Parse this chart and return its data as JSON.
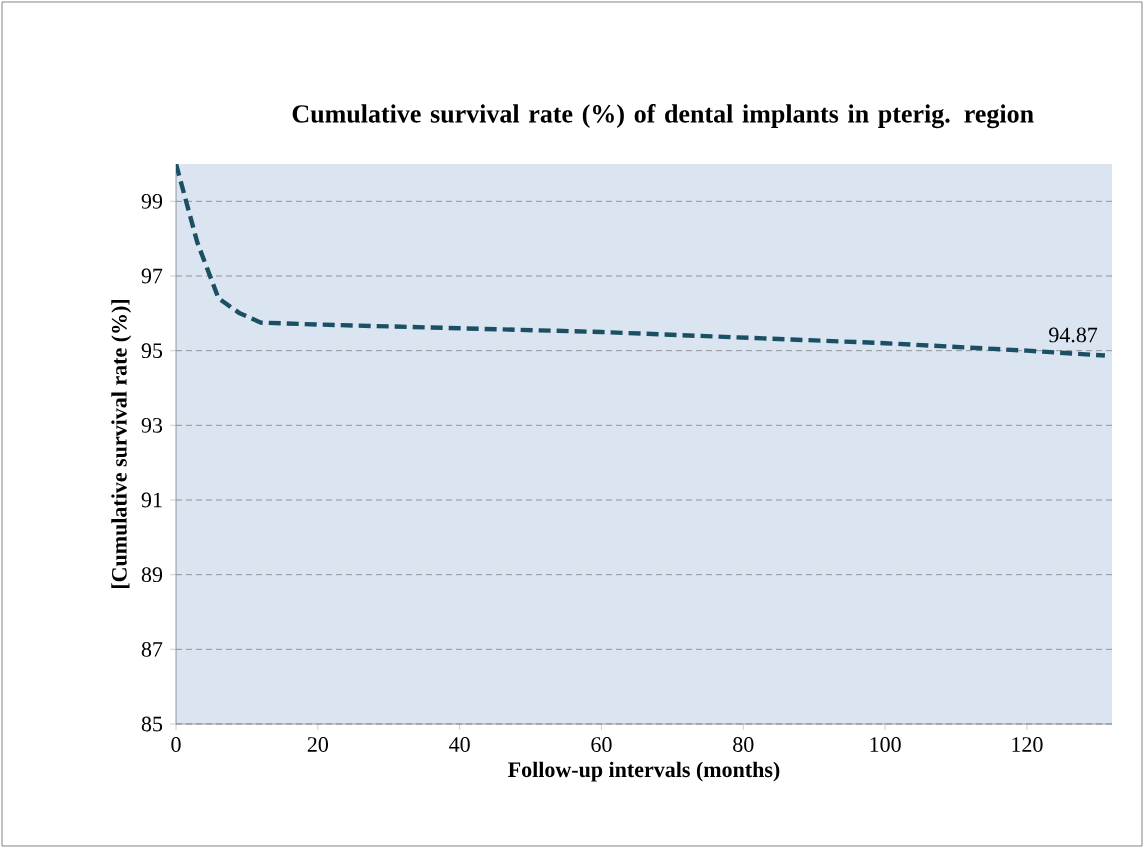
{
  "chart_data": {
    "type": "line",
    "title": "Cumulative survival rate (%) of dental implants in pterig. region",
    "xlabel": "Follow-up intervals (months)",
    "ylabel": "[Cumulative survival rate (%)]",
    "x": [
      0,
      3,
      6,
      9,
      12,
      20,
      40,
      60,
      80,
      100,
      120,
      131
    ],
    "series": [
      {
        "color": "#1b4f63",
        "values": [
          100,
          97.9,
          96.4,
          96.0,
          95.75,
          95.7,
          95.6,
          95.5,
          95.35,
          95.2,
          95.0,
          94.87
        ]
      }
    ],
    "xlim": [
      0,
      132
    ],
    "ylim": [
      85,
      100
    ],
    "xticks": [
      0,
      20,
      40,
      60,
      80,
      100,
      120
    ],
    "yticks": [
      85,
      87,
      89,
      91,
      93,
      95,
      97,
      99
    ],
    "grid": "y",
    "marker": "none",
    "line_style": "dashed",
    "annotations": [
      {
        "text": "94.87",
        "x": 131,
        "y": 94.87
      }
    ]
  }
}
